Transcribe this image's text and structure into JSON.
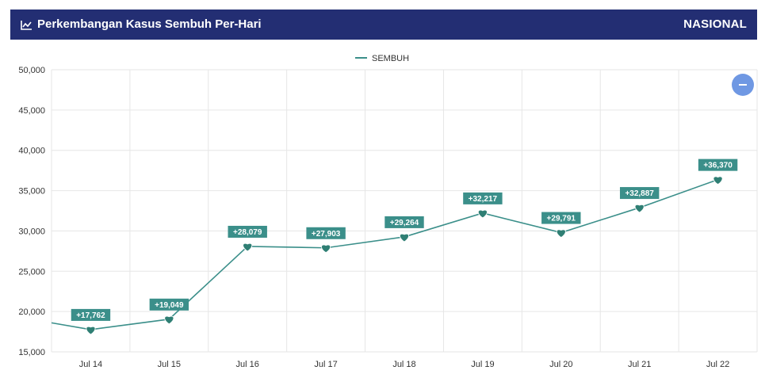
{
  "header": {
    "title": "Perkembangan Kasus Sembuh Per-Hari",
    "scope": "NASIONAL",
    "title_icon": "line-chart-icon"
  },
  "zoom_button": {
    "icon": "minus-icon"
  },
  "chart_data": {
    "type": "line",
    "title": "",
    "xlabel": "",
    "ylabel": "",
    "categories": [
      "Jul 14",
      "Jul 15",
      "Jul 16",
      "Jul 17",
      "Jul 18",
      "Jul 19",
      "Jul 20",
      "Jul 21",
      "Jul 22"
    ],
    "ylim": [
      15000,
      50000
    ],
    "yticks": [
      15000,
      20000,
      25000,
      30000,
      35000,
      40000,
      45000,
      50000
    ],
    "ytick_labels": [
      "15,000",
      "20,000",
      "25,000",
      "30,000",
      "35,000",
      "40,000",
      "45,000",
      "50,000"
    ],
    "legend": {
      "position": "top-center"
    },
    "grid": true,
    "series": [
      {
        "name": "SEMBUH",
        "color": "#3b8f8a",
        "marker": "heart-icon",
        "previous_value": 18600,
        "values": [
          17762,
          19049,
          28079,
          27903,
          29264,
          32217,
          29791,
          32887,
          36370
        ],
        "data_labels": [
          "+17,762",
          "+19,049",
          "+28,079",
          "+27,903",
          "+29,264",
          "+32,217",
          "+29,791",
          "+32,887",
          "+36,370"
        ]
      }
    ]
  }
}
